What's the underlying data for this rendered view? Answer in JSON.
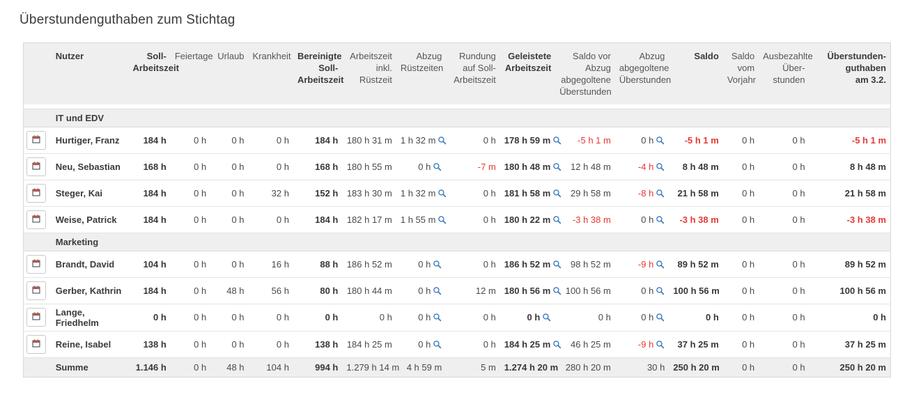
{
  "page_title": "Überstundenguthaben zum Stichtag",
  "colors": {
    "negative_red": "#e53935",
    "magnifier_blue": "#3d7cc0",
    "header_bg": "#efefef",
    "border": "#d8d8d8",
    "icon_red": "#c25048",
    "icon_dark": "#4e5662"
  },
  "icons": {
    "row_action": "calendar-icon",
    "detail_lookup": "magnifier-icon"
  },
  "table": {
    "columns": [
      {
        "key": "icon",
        "label": "",
        "bold": false,
        "align": "left"
      },
      {
        "key": "nutzer",
        "label": "Nutzer",
        "bold": true,
        "align": "left"
      },
      {
        "key": "soll-arbeitszeit",
        "label": "Soll-\nArbeitszeit",
        "bold": true,
        "align": "right"
      },
      {
        "key": "feiertage",
        "label": "Feiertage",
        "bold": false,
        "align": "right"
      },
      {
        "key": "urlaub",
        "label": "Urlaub",
        "bold": false,
        "align": "right"
      },
      {
        "key": "krankheit",
        "label": "Krankheit",
        "bold": false,
        "align": "right"
      },
      {
        "key": "bereinigte-soll-arbeitszeit",
        "label": "Bereinigte\nSoll-\nArbeitszeit",
        "bold": true,
        "align": "right"
      },
      {
        "key": "arbeitszeit-inkl-ruestzeit",
        "label": "Arbeitszeit\ninkl.\nRüstzeit",
        "bold": false,
        "align": "right"
      },
      {
        "key": "abzug-ruestzeiten",
        "label": "Abzug\nRüstzeiten",
        "bold": false,
        "align": "right"
      },
      {
        "key": "rundung-auf-soll-arbeitszeit",
        "label": "Rundung\nauf Soll-\nArbeitszeit",
        "bold": false,
        "align": "right"
      },
      {
        "key": "geleistete-arbeitszeit",
        "label": "Geleistete\nArbeitszeit",
        "bold": true,
        "align": "right"
      },
      {
        "key": "saldo-vor-abzug",
        "label": "Saldo vor\nAbzug\nabgegoltene\nÜberstunden",
        "bold": false,
        "align": "right"
      },
      {
        "key": "abzug-abgegoltene",
        "label": "Abzug\nabgegoltene\nÜberstunden",
        "bold": false,
        "align": "right"
      },
      {
        "key": "saldo",
        "label": "Saldo",
        "bold": true,
        "align": "right"
      },
      {
        "key": "saldo-vorjahr",
        "label": "Saldo\nvom\nVorjahr",
        "bold": false,
        "align": "right"
      },
      {
        "key": "ausbezahlte-ueberstunden",
        "label": "Ausbezahlte\nÜber-\nstunden",
        "bold": false,
        "align": "right"
      },
      {
        "key": "ueberstundenguthaben",
        "label": "Überstunden-\nguthaben\nam 3.2.",
        "bold": true,
        "align": "right"
      }
    ],
    "groups": [
      {
        "name": "IT und EDV",
        "rows": [
          {
            "name": "Hurtiger, Franz",
            "values": [
              {
                "t": "184 h",
                "b": true
              },
              {
                "t": "0 h"
              },
              {
                "t": "0 h"
              },
              {
                "t": "0 h"
              },
              {
                "t": "184 h",
                "b": true
              },
              {
                "t": "180 h 31 m"
              },
              {
                "t": "1 h 32 m",
                "q": true
              },
              {
                "t": "0 h"
              },
              {
                "t": "178 h 59 m",
                "b": true,
                "q": true
              },
              {
                "t": "-5 h 1 m",
                "r": true
              },
              {
                "t": "0 h",
                "q": true
              },
              {
                "t": "-5 h 1 m",
                "b": true,
                "r": true
              },
              {
                "t": "0 h"
              },
              {
                "t": "0 h"
              },
              {
                "t": "-5 h 1 m",
                "b": true,
                "r": true
              }
            ]
          },
          {
            "name": "Neu, Sebastian",
            "values": [
              {
                "t": "168 h",
                "b": true
              },
              {
                "t": "0 h"
              },
              {
                "t": "0 h"
              },
              {
                "t": "0 h"
              },
              {
                "t": "168 h",
                "b": true
              },
              {
                "t": "180 h 55 m"
              },
              {
                "t": "0 h",
                "q": true
              },
              {
                "t": "-7 m",
                "r": true
              },
              {
                "t": "180 h 48 m",
                "b": true,
                "q": true
              },
              {
                "t": "12 h 48 m"
              },
              {
                "t": "-4 h",
                "r": true,
                "q": true
              },
              {
                "t": "8 h 48 m",
                "b": true
              },
              {
                "t": "0 h"
              },
              {
                "t": "0 h"
              },
              {
                "t": "8 h 48 m",
                "b": true
              }
            ]
          },
          {
            "name": "Steger, Kai",
            "values": [
              {
                "t": "184 h",
                "b": true
              },
              {
                "t": "0 h"
              },
              {
                "t": "0 h"
              },
              {
                "t": "32 h"
              },
              {
                "t": "152 h",
                "b": true
              },
              {
                "t": "183 h 30 m"
              },
              {
                "t": "1 h 32 m",
                "q": true
              },
              {
                "t": "0 h"
              },
              {
                "t": "181 h 58 m",
                "b": true,
                "q": true
              },
              {
                "t": "29 h 58 m"
              },
              {
                "t": "-8 h",
                "r": true,
                "q": true
              },
              {
                "t": "21 h 58 m",
                "b": true
              },
              {
                "t": "0 h"
              },
              {
                "t": "0 h"
              },
              {
                "t": "21 h 58 m",
                "b": true
              }
            ]
          },
          {
            "name": "Weise, Patrick",
            "values": [
              {
                "t": "184 h",
                "b": true
              },
              {
                "t": "0 h"
              },
              {
                "t": "0 h"
              },
              {
                "t": "0 h"
              },
              {
                "t": "184 h",
                "b": true
              },
              {
                "t": "182 h 17 m"
              },
              {
                "t": "1 h 55 m",
                "q": true
              },
              {
                "t": "0 h"
              },
              {
                "t": "180 h 22 m",
                "b": true,
                "q": true
              },
              {
                "t": "-3 h 38 m",
                "r": true
              },
              {
                "t": "0 h",
                "q": true
              },
              {
                "t": "-3 h 38 m",
                "b": true,
                "r": true
              },
              {
                "t": "0 h"
              },
              {
                "t": "0 h"
              },
              {
                "t": "-3 h 38 m",
                "b": true,
                "r": true
              }
            ]
          }
        ]
      },
      {
        "name": "Marketing",
        "rows": [
          {
            "name": "Brandt, David",
            "values": [
              {
                "t": "104 h",
                "b": true
              },
              {
                "t": "0 h"
              },
              {
                "t": "0 h"
              },
              {
                "t": "16 h"
              },
              {
                "t": "88 h",
                "b": true
              },
              {
                "t": "186 h 52 m"
              },
              {
                "t": "0 h",
                "q": true
              },
              {
                "t": "0 h"
              },
              {
                "t": "186 h 52 m",
                "b": true,
                "q": true
              },
              {
                "t": "98 h 52 m"
              },
              {
                "t": "-9 h",
                "r": true,
                "q": true
              },
              {
                "t": "89 h 52 m",
                "b": true
              },
              {
                "t": "0 h"
              },
              {
                "t": "0 h"
              },
              {
                "t": "89 h 52 m",
                "b": true
              }
            ]
          },
          {
            "name": "Gerber, Kathrin",
            "values": [
              {
                "t": "184 h",
                "b": true
              },
              {
                "t": "0 h"
              },
              {
                "t": "48 h"
              },
              {
                "t": "56 h"
              },
              {
                "t": "80 h",
                "b": true
              },
              {
                "t": "180 h 44 m"
              },
              {
                "t": "0 h",
                "q": true
              },
              {
                "t": "12 m"
              },
              {
                "t": "180 h 56 m",
                "b": true,
                "q": true
              },
              {
                "t": "100 h 56 m"
              },
              {
                "t": "0 h",
                "q": true
              },
              {
                "t": "100 h 56 m",
                "b": true
              },
              {
                "t": "0 h"
              },
              {
                "t": "0 h"
              },
              {
                "t": "100 h 56 m",
                "b": true
              }
            ]
          },
          {
            "name": "Lange, Friedhelm",
            "values": [
              {
                "t": "0 h",
                "b": true
              },
              {
                "t": "0 h"
              },
              {
                "t": "0 h"
              },
              {
                "t": "0 h"
              },
              {
                "t": "0 h",
                "b": true
              },
              {
                "t": "0 h"
              },
              {
                "t": "0 h",
                "q": true
              },
              {
                "t": "0 h"
              },
              {
                "t": "0 h",
                "b": true,
                "q": true
              },
              {
                "t": "0 h"
              },
              {
                "t": "0 h",
                "q": true
              },
              {
                "t": "0 h",
                "b": true
              },
              {
                "t": "0 h"
              },
              {
                "t": "0 h"
              },
              {
                "t": "0 h",
                "b": true
              }
            ]
          },
          {
            "name": "Reine, Isabel",
            "values": [
              {
                "t": "138 h",
                "b": true
              },
              {
                "t": "0 h"
              },
              {
                "t": "0 h"
              },
              {
                "t": "0 h"
              },
              {
                "t": "138 h",
                "b": true
              },
              {
                "t": "184 h 25 m"
              },
              {
                "t": "0 h",
                "q": true
              },
              {
                "t": "0 h"
              },
              {
                "t": "184 h 25 m",
                "b": true,
                "q": true
              },
              {
                "t": "46 h 25 m"
              },
              {
                "t": "-9 h",
                "r": true,
                "q": true
              },
              {
                "t": "37 h 25 m",
                "b": true
              },
              {
                "t": "0 h"
              },
              {
                "t": "0 h"
              },
              {
                "t": "37 h 25 m",
                "b": true
              }
            ]
          }
        ]
      }
    ],
    "summary": {
      "label": "Summe",
      "values": [
        {
          "t": "1.146 h",
          "b": true
        },
        {
          "t": "0 h"
        },
        {
          "t": "48 h"
        },
        {
          "t": "104 h"
        },
        {
          "t": "994 h",
          "b": true
        },
        {
          "t": "1.279 h 14 m"
        },
        {
          "t": "4 h 59 m"
        },
        {
          "t": "5 m"
        },
        {
          "t": "1.274 h 20 m",
          "b": true
        },
        {
          "t": "280 h 20 m"
        },
        {
          "t": "30 h"
        },
        {
          "t": "250 h 20 m",
          "b": true
        },
        {
          "t": "0 h"
        },
        {
          "t": "0 h"
        },
        {
          "t": "250 h 20 m",
          "b": true
        }
      ]
    }
  }
}
